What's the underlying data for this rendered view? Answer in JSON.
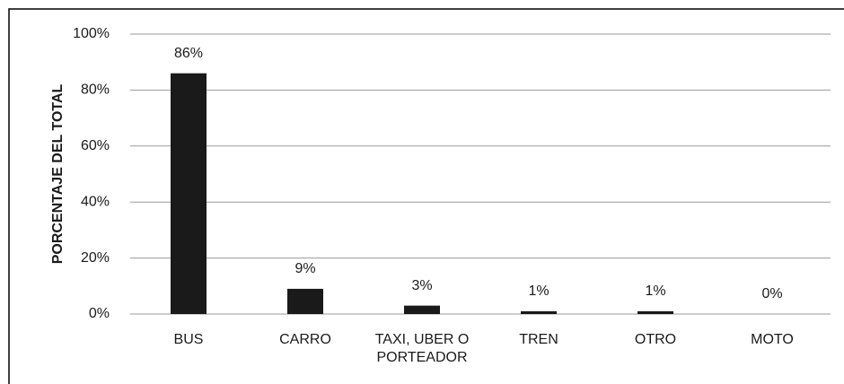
{
  "chart_data": {
    "type": "bar",
    "y_axis_label": "PORCENTAJE DEL TOTAL",
    "categories": [
      "BUS",
      "CARRO",
      "TAXI, UBER O PORTEADOR",
      "TREN",
      "OTRO",
      "MOTO"
    ],
    "values": [
      86,
      9,
      3,
      1,
      1,
      0
    ],
    "value_labels": [
      "86%",
      "9%",
      "3%",
      "1%",
      "1%",
      "0%"
    ],
    "color": "#1a1a1a",
    "ylim": [
      0,
      100
    ],
    "yticks": [
      {
        "value": 0,
        "label": "0%"
      },
      {
        "value": 20,
        "label": "20%"
      },
      {
        "value": 40,
        "label": "40%"
      },
      {
        "value": 60,
        "label": "60%"
      },
      {
        "value": 80,
        "label": "80%"
      },
      {
        "value": 100,
        "label": "100%"
      }
    ],
    "grid": true
  }
}
